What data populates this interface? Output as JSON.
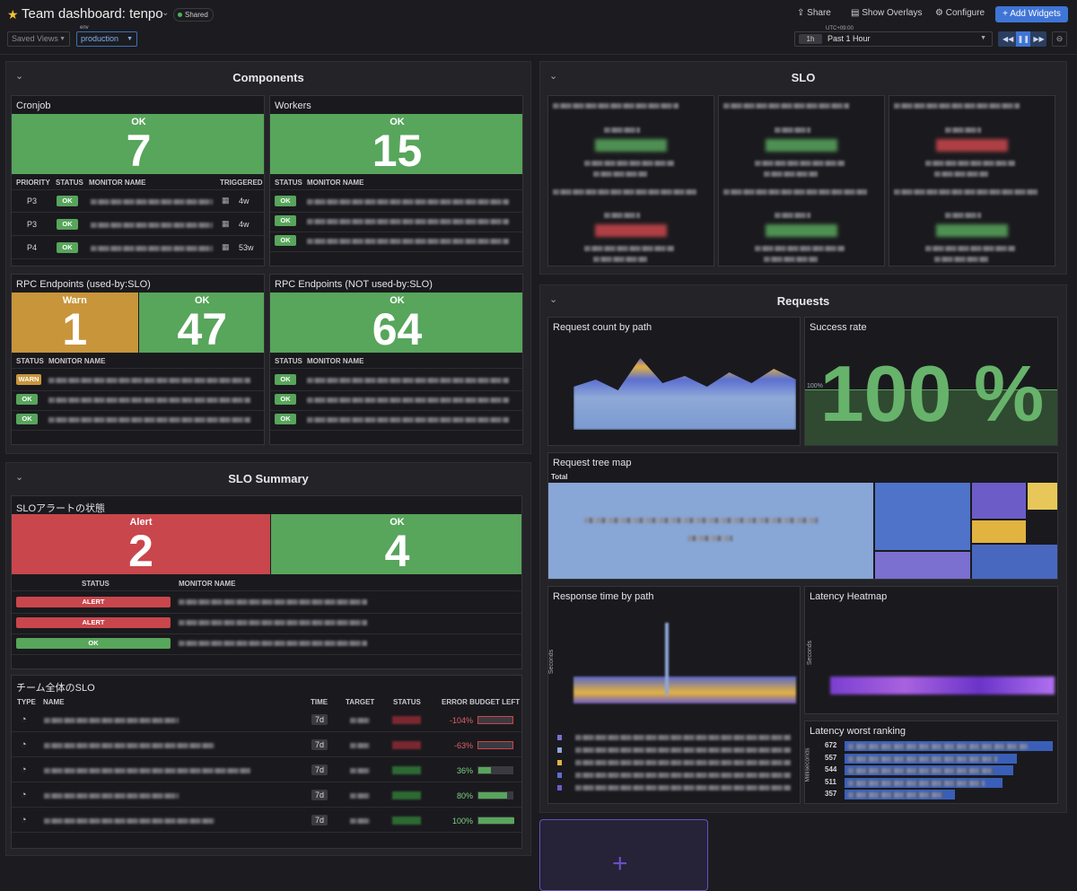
{
  "header": {
    "title": "Team dashboard: tenpo",
    "shared": "Shared",
    "actions": [
      "Share",
      "Show Overlays",
      "Configure",
      "Add Widgets"
    ],
    "saved_views": "Saved Views",
    "env_label": "env",
    "env_value": "production",
    "timezone": "UTC+09:00",
    "range_short": "1h",
    "range": "Past 1 Hour"
  },
  "components": {
    "title": "Components",
    "widgets": [
      {
        "title": "Cronjob",
        "tiles": [
          {
            "status": "OK",
            "count": "7"
          }
        ],
        "columns": [
          "PRIORITY",
          "STATUS",
          "MONITOR NAME",
          "TRIGGERED"
        ],
        "rows": [
          {
            "priority": "P3",
            "status": "OK",
            "triggered": "4w"
          },
          {
            "priority": "P3",
            "status": "OK",
            "triggered": "4w"
          },
          {
            "priority": "P4",
            "status": "OK",
            "triggered": "53w"
          }
        ]
      },
      {
        "title": "Workers",
        "tiles": [
          {
            "status": "OK",
            "count": "15"
          }
        ],
        "columns": [
          "STATUS",
          "MONITOR NAME"
        ],
        "rows": [
          {
            "status": "OK"
          },
          {
            "status": "OK"
          },
          {
            "status": "OK"
          }
        ]
      },
      {
        "title": "RPC Endpoints (used-by:SLO)",
        "tiles": [
          {
            "status": "Warn",
            "count": "1"
          },
          {
            "status": "OK",
            "count": "47"
          }
        ],
        "columns": [
          "STATUS",
          "MONITOR NAME"
        ],
        "rows": [
          {
            "status": "WARN"
          },
          {
            "status": "OK"
          },
          {
            "status": "OK"
          }
        ]
      },
      {
        "title": "RPC Endpoints (NOT used-by:SLO)",
        "tiles": [
          {
            "status": "OK",
            "count": "64"
          }
        ],
        "columns": [
          "STATUS",
          "MONITOR NAME"
        ],
        "rows": [
          {
            "status": "OK"
          },
          {
            "status": "OK"
          },
          {
            "status": "OK"
          }
        ]
      }
    ]
  },
  "slo": {
    "title": "SLO"
  },
  "slo_summary": {
    "title": "SLO Summary",
    "alerts": {
      "title": "SLOアラートの状態",
      "tiles": [
        {
          "status": "Alert",
          "count": "2"
        },
        {
          "status": "OK",
          "count": "4"
        }
      ],
      "columns": [
        "STATUS",
        "MONITOR NAME"
      ],
      "rows": [
        {
          "status": "ALERT"
        },
        {
          "status": "ALERT"
        },
        {
          "status": "OK"
        }
      ]
    },
    "team": {
      "title": "チーム全体のSLO",
      "columns": [
        "TYPE",
        "NAME",
        "TIME",
        "TARGET",
        "STATUS",
        "ERROR BUDGET LEFT"
      ],
      "rows": [
        {
          "time": "7d",
          "budget": -104,
          "budget_label": "-104%"
        },
        {
          "time": "7d",
          "budget": -63,
          "budget_label": "-63%"
        },
        {
          "time": "7d",
          "budget": 36,
          "budget_label": "36%"
        },
        {
          "time": "7d",
          "budget": 80,
          "budget_label": "80%"
        },
        {
          "time": "7d",
          "budget": 100,
          "budget_label": "100%"
        }
      ]
    }
  },
  "requests": {
    "title": "Requests",
    "count_title": "Request count by path",
    "success_title": "Success rate",
    "success_value": "100 %",
    "success_threshold": "100%",
    "treemap_title": "Request tree map",
    "treemap_root": "Total",
    "response_title": "Response time by path",
    "response_axis": "Seconds",
    "heatmap_title": "Latency Heatmap",
    "heatmap_axis": "Seconds",
    "ranking_title": "Latency worst ranking",
    "ranking_axis": "Milliseconds",
    "ranking_values": [
      672,
      557,
      544,
      511,
      357
    ]
  }
}
